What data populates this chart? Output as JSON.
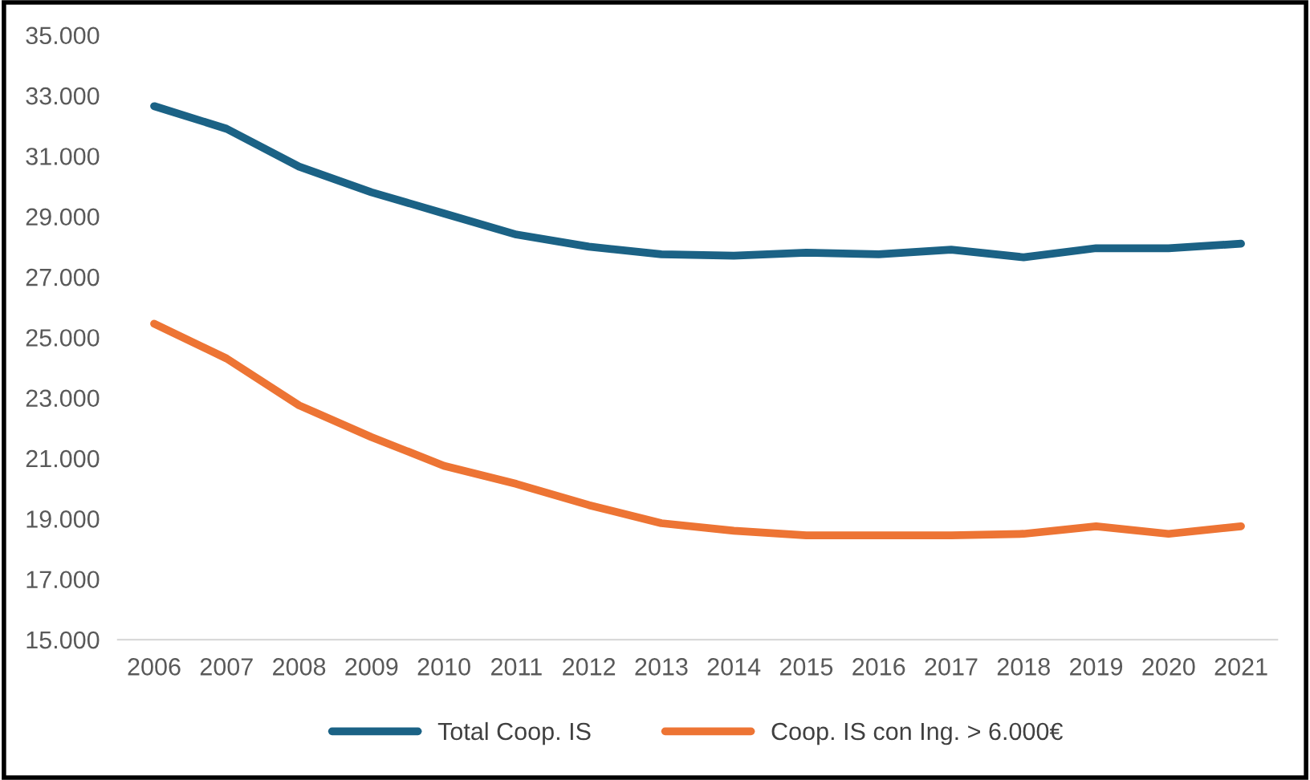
{
  "chart_data": {
    "type": "line",
    "categories": [
      "2006",
      "2007",
      "2008",
      "2009",
      "2010",
      "2011",
      "2012",
      "2013",
      "2014",
      "2015",
      "2016",
      "2017",
      "2018",
      "2019",
      "2020",
      "2021"
    ],
    "series": [
      {
        "name": "Total Coop. IS",
        "color": "#1b6285",
        "values": [
          32650,
          31900,
          30650,
          29800,
          29100,
          28400,
          28000,
          27750,
          27700,
          27800,
          27750,
          27900,
          27650,
          27950,
          27950,
          28100
        ]
      },
      {
        "name": "Coop. IS con Ing. > 6.000€",
        "color": "#ed7434",
        "values": [
          25450,
          24300,
          22750,
          21700,
          20750,
          20150,
          19450,
          18850,
          18600,
          18450,
          18450,
          18450,
          18500,
          18750,
          18500,
          18750
        ]
      }
    ],
    "ylim": [
      15000,
      35000
    ],
    "yticks": [
      {
        "value": 15000,
        "label": "15.000"
      },
      {
        "value": 17000,
        "label": "17.000"
      },
      {
        "value": 19000,
        "label": "19.000"
      },
      {
        "value": 21000,
        "label": "21.000"
      },
      {
        "value": 23000,
        "label": "23.000"
      },
      {
        "value": 25000,
        "label": "25.000"
      },
      {
        "value": 27000,
        "label": "27.000"
      },
      {
        "value": 29000,
        "label": "29.000"
      },
      {
        "value": 31000,
        "label": "31.000"
      },
      {
        "value": 33000,
        "label": "33.000"
      },
      {
        "value": 35000,
        "label": "35.000"
      }
    ],
    "grid": false,
    "legend": "bottom",
    "marker": "none",
    "line_style": "solid"
  }
}
